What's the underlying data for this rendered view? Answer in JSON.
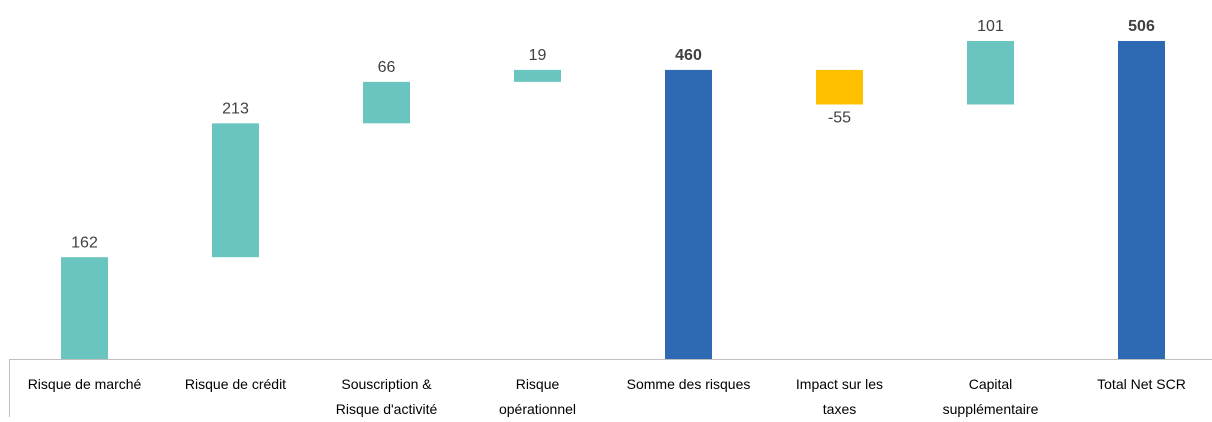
{
  "chart_data": {
    "type": "waterfall",
    "categories": [
      "Risque de marché",
      "Risque de crédit",
      "Souscription &\nRisque d'activité",
      "Risque\nopérationnel",
      "Somme des risques",
      "Impact sur les\ntaxes",
      "Capital\nsupplémentaire",
      "Total Net SCR"
    ],
    "values": [
      162,
      213,
      66,
      19,
      460,
      -55,
      101,
      506
    ],
    "measures": [
      "relative",
      "relative",
      "relative",
      "relative",
      "total",
      "relative",
      "relative",
      "total"
    ],
    "colors": {
      "increase": "#6ac4c0",
      "decrease": "#ffc000",
      "total": "#2e6ab4"
    }
  }
}
